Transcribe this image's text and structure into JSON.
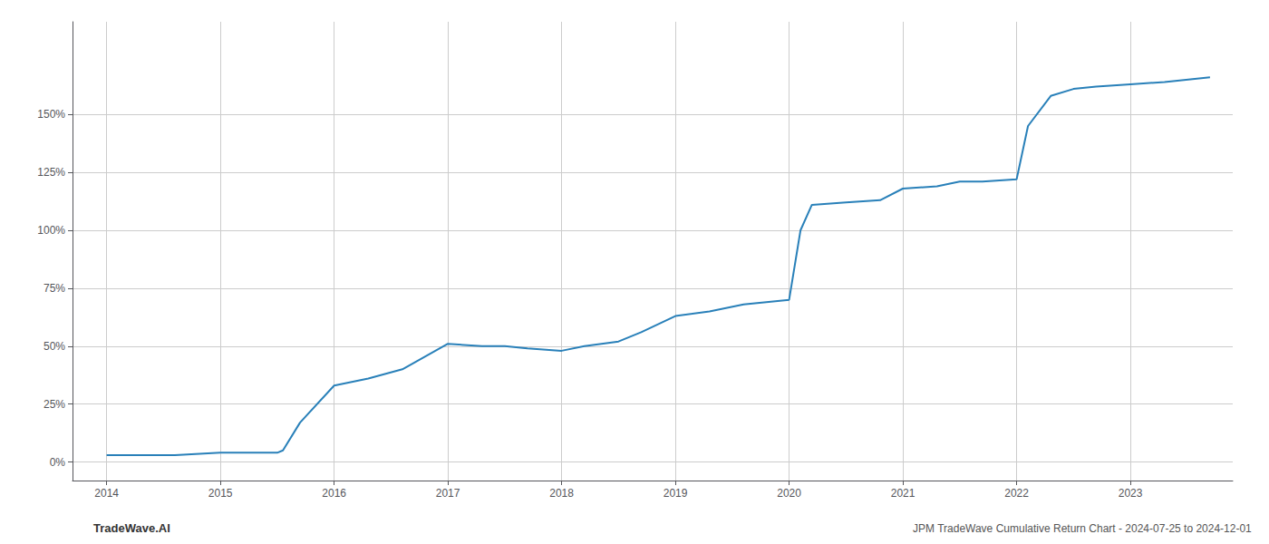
{
  "chart_data": {
    "type": "line",
    "title": "JPM TradeWave Cumulative Return Chart - 2024-07-25 to 2024-12-01",
    "annotations": [
      "TradeWave.AI"
    ],
    "x": [
      2014.0,
      2014.3,
      2014.6,
      2015.0,
      2015.3,
      2015.5,
      2015.55,
      2015.7,
      2016.0,
      2016.3,
      2016.6,
      2017.0,
      2017.3,
      2017.5,
      2017.7,
      2018.0,
      2018.2,
      2018.5,
      2018.7,
      2019.0,
      2019.3,
      2019.6,
      2019.8,
      2020.0,
      2020.1,
      2020.2,
      2020.5,
      2020.8,
      2021.0,
      2021.3,
      2021.5,
      2021.7,
      2022.0,
      2022.1,
      2022.3,
      2022.5,
      2022.7,
      2023.0,
      2023.3,
      2023.7
    ],
    "values": [
      3,
      3,
      3,
      4,
      4,
      4,
      5,
      17,
      33,
      36,
      40,
      51,
      50,
      50,
      49,
      48,
      50,
      52,
      56,
      63,
      65,
      68,
      69,
      70,
      100,
      111,
      112,
      113,
      118,
      119,
      121,
      121,
      122,
      145,
      158,
      161,
      162,
      163,
      164,
      166
    ],
    "color": "#2980b9",
    "xlim": [
      2013.7,
      2023.9
    ],
    "xticks": [
      2014,
      2015,
      2016,
      2017,
      2018,
      2019,
      2020,
      2021,
      2022,
      2023
    ],
    "ylim": [
      -8,
      190
    ],
    "yticks": [
      {
        "value": 0,
        "label": "0%"
      },
      {
        "value": 25,
        "label": "25%"
      },
      {
        "value": 50,
        "label": "50%"
      },
      {
        "value": 75,
        "label": "75%"
      },
      {
        "value": 100,
        "label": "100%"
      },
      {
        "value": 125,
        "label": "125%"
      },
      {
        "value": 150,
        "label": "150%"
      }
    ],
    "grid": true
  }
}
